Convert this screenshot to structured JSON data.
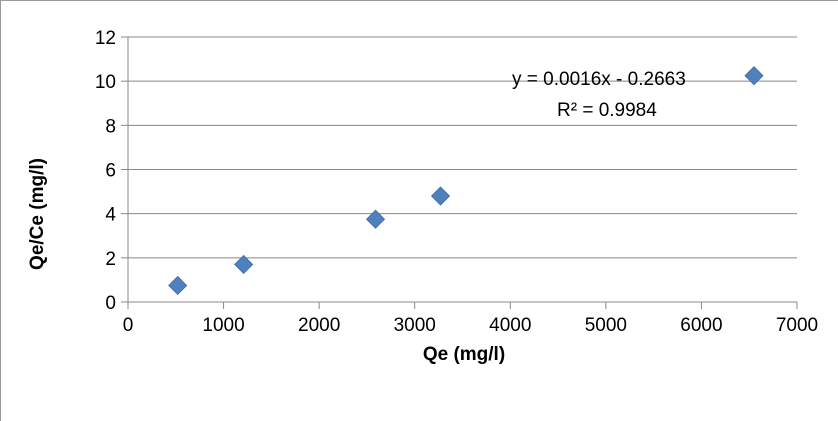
{
  "chart_data": {
    "type": "scatter",
    "title": "",
    "xlabel": "Qe (mg/l)",
    "ylabel": "Qe/Ce (mg/l)",
    "xlim": [
      0,
      7000
    ],
    "ylim": [
      0,
      12
    ],
    "x_ticks": [
      "0",
      "1000",
      "2000",
      "3000",
      "4000",
      "5000",
      "6000",
      "7000"
    ],
    "y_ticks": [
      "0",
      "2",
      "4",
      "6",
      "8",
      "10",
      "12"
    ],
    "grid": "horizontal",
    "legend": "none",
    "marker": "diamond",
    "marker_color": "#4f81bd",
    "series": [
      {
        "x": [
          520,
          1210,
          2590,
          3270,
          6550
        ],
        "y": [
          0.75,
          1.7,
          3.75,
          4.8,
          10.25
        ]
      }
    ],
    "trendline_equation": "y = 0.0016x - 0.2663",
    "trendline_r2": "R² = 0.9984"
  }
}
